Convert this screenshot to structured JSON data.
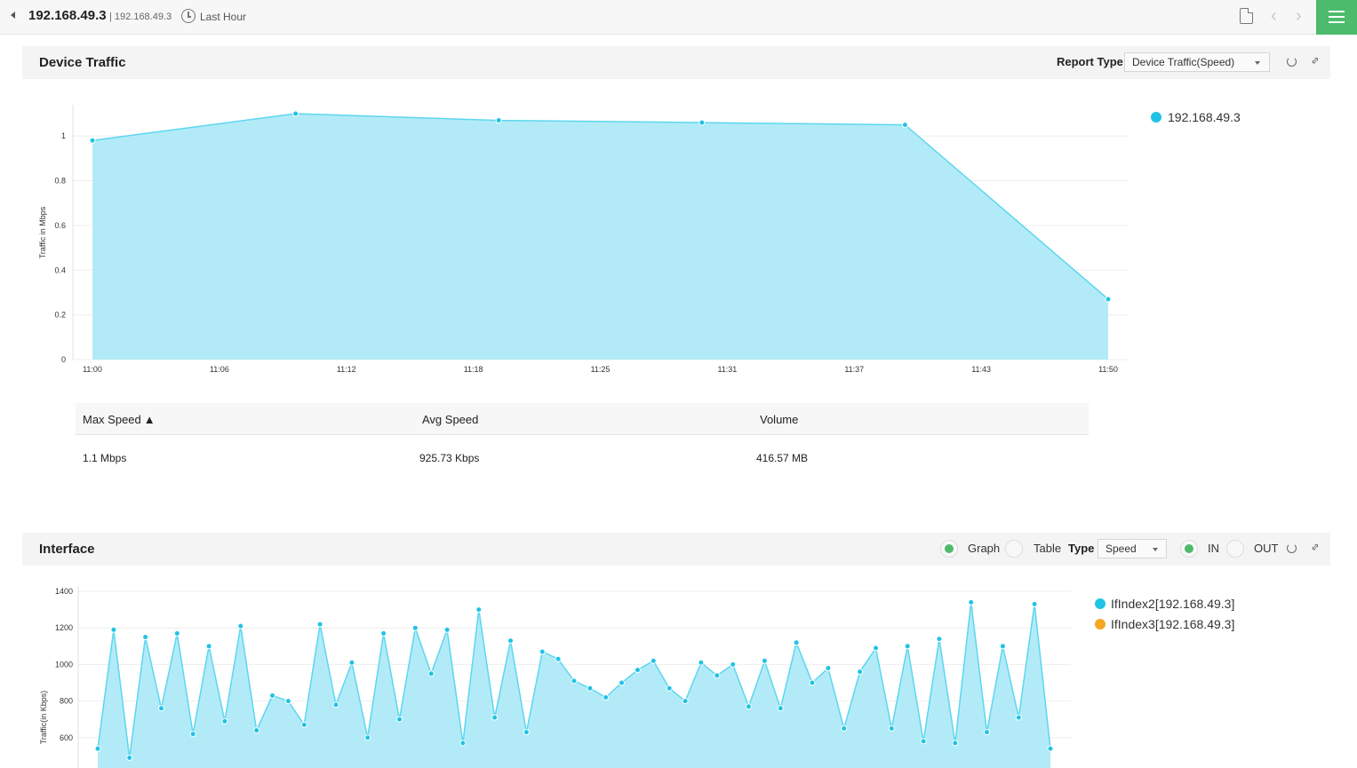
{
  "topbar": {
    "title": "192.168.49.3",
    "subtitle": "| 192.168.49.3",
    "time_range": "Last Hour",
    "prev_symbol": "‹",
    "next_symbol": "›"
  },
  "device_panel": {
    "title": "Device Traffic",
    "report_type_label": "Report Type",
    "report_type_value": "Device Traffic(Speed)"
  },
  "summary": {
    "headers": [
      "Max Speed",
      "Avg Speed",
      "Volume"
    ],
    "sort_symbol": "▲",
    "values": [
      "1.1 Mbps",
      "925.73 Kbps",
      "416.57 MB"
    ]
  },
  "interface_panel": {
    "title": "Interface",
    "graph_label": "Graph",
    "table_label": "Table",
    "type_label": "Type",
    "type_value": "Speed",
    "in_label": "IN",
    "out_label": "OUT",
    "view_selected": "Graph",
    "direction_selected": "IN"
  },
  "colors": {
    "series_cyan": "#1fc3e6",
    "series_orange": "#f5a623",
    "area_fill": "#b2ebf7",
    "accent_green": "#4cbb6c"
  },
  "chart_data": [
    {
      "type": "area",
      "ylabel": "Traffic in Mbps",
      "x": [
        "11:00",
        "11:06",
        "11:12",
        "11:18",
        "11:25",
        "11:31",
        "11:37",
        "11:43",
        "11:50"
      ],
      "ylim": [
        0,
        1.1
      ],
      "yticks": [
        0,
        0.2,
        0.4,
        0.6,
        0.8,
        1
      ],
      "grid": true,
      "legend_position": "top-right",
      "series": [
        {
          "name": "192.168.49.3",
          "points": [
            {
              "x": "11:00",
              "y": 0.98
            },
            {
              "x": "11:10",
              "y": 1.1
            },
            {
              "x": "11:20",
              "y": 1.07
            },
            {
              "x": "11:30",
              "y": 1.06
            },
            {
              "x": "11:40",
              "y": 1.05
            },
            {
              "x": "11:50",
              "y": 0.27
            }
          ]
        }
      ]
    },
    {
      "type": "area",
      "ylabel": "Traffic(in Kbps)",
      "yticks": [
        600,
        800,
        1000,
        1200,
        1400
      ],
      "ylim": [
        500,
        1400
      ],
      "grid": true,
      "legend_position": "top-right",
      "series": [
        {
          "name": "IfIndex2[192.168.49.3]",
          "values": [
            540,
            1190,
            490,
            1150,
            760,
            1170,
            620,
            1100,
            690,
            1210,
            640,
            830,
            800,
            670,
            1220,
            780,
            1010,
            600,
            1170,
            700,
            1200,
            950,
            1190,
            570,
            1300,
            710,
            1130,
            630,
            1070,
            1030,
            910,
            870,
            820,
            900,
            970,
            1020,
            870,
            800,
            1010,
            940,
            1000,
            770,
            1020,
            760,
            1120,
            900,
            980,
            650,
            960,
            1090,
            650,
            1100,
            580,
            1140,
            570,
            1340,
            630,
            1100,
            710,
            1330,
            540
          ]
        },
        {
          "name": "IfIndex3[192.168.49.3]",
          "values": []
        }
      ]
    }
  ]
}
